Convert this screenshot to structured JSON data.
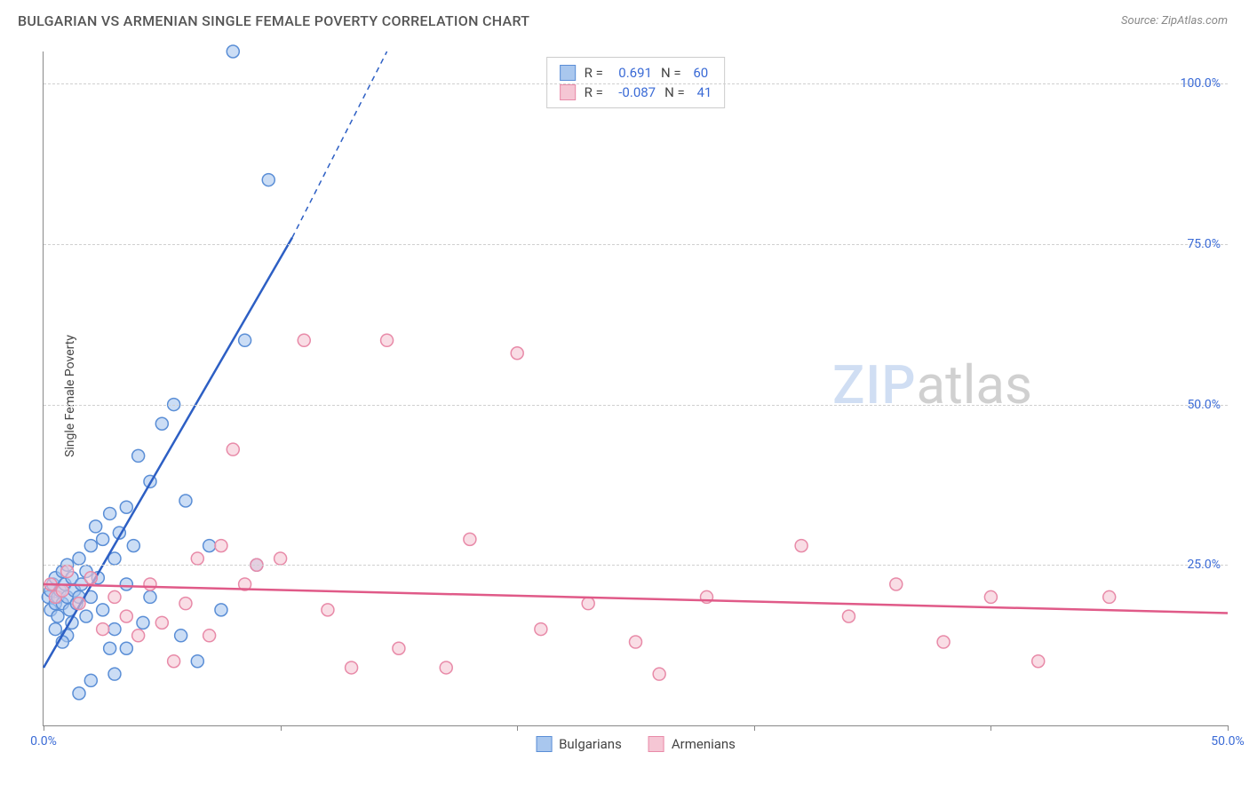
{
  "header": {
    "title": "BULGARIAN VS ARMENIAN SINGLE FEMALE POVERTY CORRELATION CHART",
    "source_label": "Source:",
    "source_name": "ZipAtlas.com"
  },
  "chart": {
    "type": "scatter",
    "ylabel": "Single Female Poverty",
    "xlim": [
      0,
      50
    ],
    "ylim": [
      0,
      105
    ],
    "xtick_positions": [
      0,
      10,
      20,
      30,
      40,
      50
    ],
    "xtick_labels": [
      "0.0%",
      "",
      "",
      "",
      "",
      "50.0%"
    ],
    "ytick_positions": [
      25,
      50,
      75,
      100
    ],
    "ytick_labels": [
      "25.0%",
      "50.0%",
      "75.0%",
      "100.0%"
    ],
    "grid_color": "#d8d8d8",
    "background_color": "#ffffff",
    "marker_radius": 7,
    "marker_stroke_width": 1.5,
    "line_width": 2.5,
    "watermark": {
      "zip": "ZIP",
      "atlas": "atlas"
    },
    "series": [
      {
        "key": "bulgarians",
        "label": "Bulgarians",
        "color_fill": "#a9c7ee",
        "color_stroke": "#5a8ed6",
        "line_color": "#2d5fc4",
        "r": 0.691,
        "n": 60,
        "regression": {
          "x1": 0,
          "y1": 9,
          "x2": 10.5,
          "y2": 76,
          "dash_x2": 14.5,
          "dash_y2": 105
        },
        "points": [
          [
            0.2,
            20
          ],
          [
            0.3,
            21
          ],
          [
            0.3,
            18
          ],
          [
            0.4,
            22
          ],
          [
            0.5,
            19
          ],
          [
            0.5,
            23
          ],
          [
            0.6,
            20
          ],
          [
            0.6,
            17
          ],
          [
            0.7,
            21
          ],
          [
            0.8,
            24
          ],
          [
            0.8,
            19
          ],
          [
            0.9,
            22
          ],
          [
            1.0,
            20
          ],
          [
            1.0,
            25
          ],
          [
            1.1,
            18
          ],
          [
            1.2,
            23
          ],
          [
            1.3,
            21
          ],
          [
            1.4,
            19
          ],
          [
            1.5,
            26
          ],
          [
            1.5,
            20
          ],
          [
            1.6,
            22
          ],
          [
            1.8,
            24
          ],
          [
            1.8,
            17
          ],
          [
            2.0,
            28
          ],
          [
            2.0,
            20
          ],
          [
            2.2,
            31
          ],
          [
            2.3,
            23
          ],
          [
            2.5,
            29
          ],
          [
            2.5,
            18
          ],
          [
            2.8,
            33
          ],
          [
            3.0,
            26
          ],
          [
            3.0,
            15
          ],
          [
            3.2,
            30
          ],
          [
            3.5,
            34
          ],
          [
            3.5,
            12
          ],
          [
            3.8,
            28
          ],
          [
            4.0,
            42
          ],
          [
            4.2,
            16
          ],
          [
            4.5,
            38
          ],
          [
            5.0,
            47
          ],
          [
            5.5,
            50
          ],
          [
            5.8,
            14
          ],
          [
            6.0,
            35
          ],
          [
            6.5,
            10
          ],
          [
            7.0,
            28
          ],
          [
            7.5,
            18
          ],
          [
            8.0,
            105
          ],
          [
            8.5,
            60
          ],
          [
            9.0,
            25
          ],
          [
            9.5,
            85
          ],
          [
            2.0,
            7
          ],
          [
            1.5,
            5
          ],
          [
            3.0,
            8
          ],
          [
            1.0,
            14
          ],
          [
            0.5,
            15
          ],
          [
            4.5,
            20
          ],
          [
            2.8,
            12
          ],
          [
            3.5,
            22
          ],
          [
            1.2,
            16
          ],
          [
            0.8,
            13
          ]
        ]
      },
      {
        "key": "armenians",
        "label": "Armenians",
        "color_fill": "#f5c6d4",
        "color_stroke": "#e88aa8",
        "line_color": "#e05a88",
        "r": -0.087,
        "n": 41,
        "regression": {
          "x1": 0,
          "y1": 22,
          "x2": 50,
          "y2": 17.5
        },
        "points": [
          [
            0.3,
            22
          ],
          [
            0.5,
            20
          ],
          [
            0.8,
            21
          ],
          [
            1.0,
            24
          ],
          [
            1.5,
            19
          ],
          [
            2.0,
            23
          ],
          [
            2.5,
            15
          ],
          [
            3.0,
            20
          ],
          [
            3.5,
            17
          ],
          [
            4.0,
            14
          ],
          [
            4.5,
            22
          ],
          [
            5.0,
            16
          ],
          [
            5.5,
            10
          ],
          [
            6.0,
            19
          ],
          [
            6.5,
            26
          ],
          [
            7.0,
            14
          ],
          [
            7.5,
            28
          ],
          [
            8.0,
            43
          ],
          [
            8.5,
            22
          ],
          [
            9.0,
            25
          ],
          [
            10.0,
            26
          ],
          [
            11.0,
            60
          ],
          [
            12.0,
            18
          ],
          [
            13.0,
            9
          ],
          [
            14.5,
            60
          ],
          [
            15.0,
            12
          ],
          [
            17.0,
            9
          ],
          [
            18.0,
            29
          ],
          [
            20.0,
            58
          ],
          [
            23.0,
            19
          ],
          [
            25.0,
            13
          ],
          [
            26.0,
            8
          ],
          [
            28.0,
            20
          ],
          [
            32.0,
            28
          ],
          [
            34.0,
            17
          ],
          [
            36.0,
            22
          ],
          [
            38.0,
            13
          ],
          [
            40.0,
            20
          ],
          [
            42.0,
            10
          ],
          [
            45.0,
            20
          ],
          [
            21.0,
            15
          ]
        ]
      }
    ],
    "legend_top": {
      "r_label": "R =",
      "n_label": "N ="
    },
    "legend_bottom_labels": [
      "Bulgarians",
      "Armenians"
    ]
  }
}
